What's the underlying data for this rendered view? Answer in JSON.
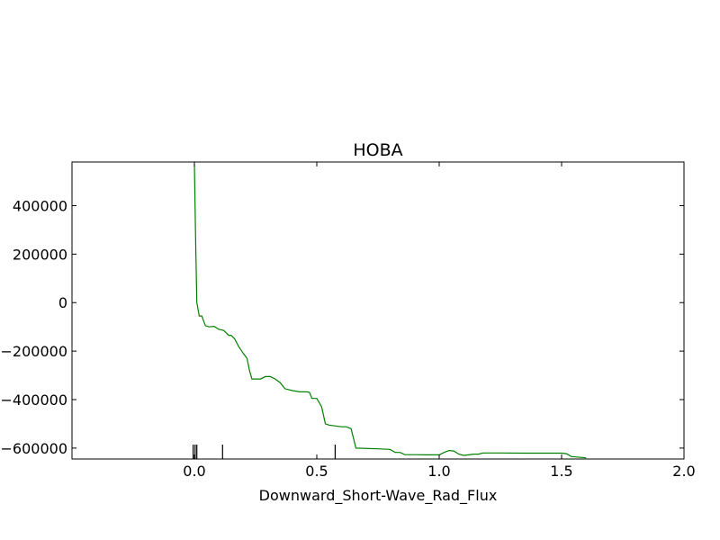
{
  "chart_data": {
    "type": "line",
    "title": "HOBA",
    "xlabel": "Downward_Short-Wave_Rad_Flux",
    "ylabel": "",
    "xlim": [
      -0.5,
      2.0
    ],
    "ylim": [
      -645000,
      580000
    ],
    "x_ticks": [
      0.0,
      0.5,
      1.0,
      1.5,
      2.0
    ],
    "x_tick_labels": [
      "0.0",
      "0.5",
      "1.0",
      "1.5",
      "2.0"
    ],
    "y_ticks": [
      -600000,
      -400000,
      -200000,
      0,
      200000,
      400000
    ],
    "y_tick_labels": [
      "−600000",
      "−400000",
      "−200000",
      "0",
      "200000",
      "400000"
    ],
    "grid": false,
    "line_color": "#008000",
    "series": [
      {
        "x": [
          0.0,
          0.005,
          0.01,
          0.02,
          0.03,
          0.045,
          0.06,
          0.08,
          0.1,
          0.12,
          0.14,
          0.15,
          0.165,
          0.18,
          0.2,
          0.215,
          0.225,
          0.235,
          0.25,
          0.27,
          0.29,
          0.31,
          0.33,
          0.35,
          0.37,
          0.4,
          0.43,
          0.46,
          0.47,
          0.48,
          0.5,
          0.52,
          0.535,
          0.55,
          0.6,
          0.62,
          0.64,
          0.66,
          0.75,
          0.79,
          0.8,
          0.82,
          0.84,
          0.86,
          0.9,
          0.95,
          1.0,
          1.02,
          1.04,
          1.06,
          1.08,
          1.1,
          1.12,
          1.14,
          1.16,
          1.18,
          1.25,
          1.35,
          1.5,
          1.52,
          1.54,
          1.6
        ],
        "y": [
          570000,
          250000,
          0,
          -55000,
          -55000,
          -95000,
          -100000,
          -98000,
          -110000,
          -115000,
          -135000,
          -135000,
          -150000,
          -180000,
          -210000,
          -230000,
          -280000,
          -315000,
          -315000,
          -315000,
          -305000,
          -305000,
          -315000,
          -330000,
          -355000,
          -363000,
          -368000,
          -368000,
          -370000,
          -395000,
          -395000,
          -430000,
          -500000,
          -505000,
          -512000,
          -512000,
          -520000,
          -600000,
          -603000,
          -605000,
          -606000,
          -618000,
          -618000,
          -627000,
          -627000,
          -628000,
          -628000,
          -618000,
          -610000,
          -612000,
          -625000,
          -630000,
          -628000,
          -625000,
          -625000,
          -620000,
          -620000,
          -621000,
          -621000,
          -623000,
          -635000,
          -640000
        ]
      }
    ],
    "rug_x": [
      -0.005,
      0.003,
      0.01,
      0.115,
      0.575
    ]
  }
}
